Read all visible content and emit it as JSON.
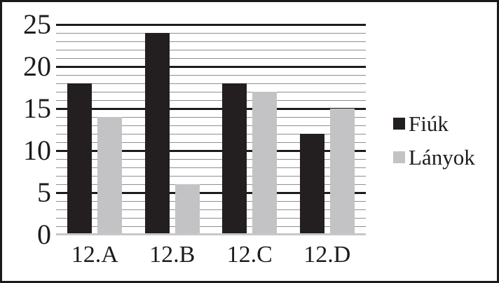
{
  "chart_data": {
    "type": "bar",
    "title": "",
    "categories": [
      "12.A",
      "12.B",
      "12.C",
      "12.D"
    ],
    "series": [
      {
        "name": "Fiúk",
        "values": [
          18,
          24,
          18,
          12
        ],
        "color": "#231f20"
      },
      {
        "name": "Lányok",
        "values": [
          14,
          6,
          17,
          15
        ],
        "color": "#c3c3c6"
      }
    ],
    "ylim": [
      0,
      25
    ],
    "y_major_step": 5,
    "y_minor_step": 1,
    "y_tick_labels": [
      "0",
      "5",
      "10",
      "15",
      "20",
      "25"
    ],
    "grid": "horizontal, black major lines every 5, gray minor lines every 1",
    "legend_position": "right",
    "legend_entries": [
      "Fiúk",
      "Lányok"
    ]
  },
  "colors": {
    "background": "#ffffff",
    "border": "#1a1a1a",
    "major_gridline": "#1c1c1c",
    "minor_gridline": "#8f8f8f",
    "baseline": "#c7c7c7",
    "text": "#1c1c1c",
    "series_fiuk": "#231f20",
    "series_lanyok": "#c3c3c6"
  }
}
